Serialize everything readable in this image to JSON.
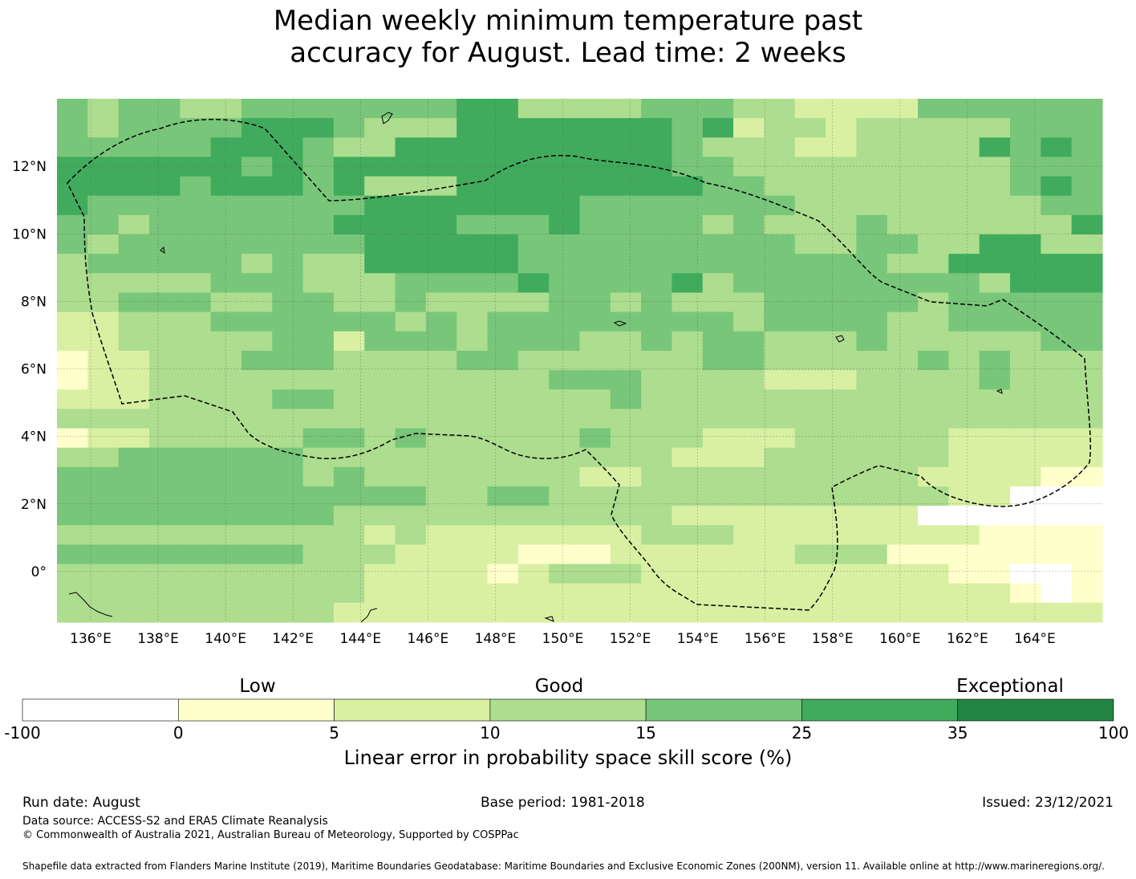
{
  "title": {
    "line1": "Median weekly minimum temperature past",
    "line2": "accuracy for August. Lead time: 2 weeks"
  },
  "map": {
    "lon_range": [
      135,
      166
    ],
    "lat_range": [
      -1.5,
      14
    ],
    "lon_ticks": [
      "136°E",
      "138°E",
      "140°E",
      "142°E",
      "144°E",
      "146°E",
      "148°E",
      "150°E",
      "152°E",
      "154°E",
      "156°E",
      "158°E",
      "160°E",
      "162°E",
      "164°E"
    ],
    "lat_ticks": [
      "12°N",
      "10°N",
      "8°N",
      "6°N",
      "4°N",
      "2°N",
      "0°"
    ],
    "lat_tick_values": [
      12,
      10,
      8,
      6,
      4,
      2,
      0
    ],
    "lon_tick_values": [
      136,
      138,
      140,
      142,
      144,
      146,
      148,
      150,
      152,
      154,
      156,
      158,
      160,
      162,
      164
    ]
  },
  "colorbar": {
    "categories": [
      {
        "word": "Low"
      },
      {
        "word": "Good"
      },
      {
        "word": "Exceptional"
      }
    ],
    "boundaries": [
      "-100",
      "0",
      "5",
      "10",
      "15",
      "25",
      "35",
      "100"
    ],
    "colors": [
      "#ffffff",
      "#ffffcc",
      "#d9f0a3",
      "#addd8e",
      "#78c679",
      "#41ab5d",
      "#238443"
    ],
    "label": "Linear error in probability space skill score (%)"
  },
  "footer": {
    "run_date": "Run date: August",
    "base_period": "Base period: 1981-2018",
    "issued": "Issued: 23/12/2021",
    "data_source": "Data source: ACCESS-S2 and ERA5 Climate Reanalysis",
    "copyright": "© Commonwealth of Australia 2021, Australian Bureau of Meteorology, Supported by COSPPac",
    "shapefile": "Shapefile data extracted from Flanders Marine Institute (2019), Maritime Boundaries Geodatabase: Maritime Boundaries and Exclusive Economic Zones (200NM), version 11. Available online at http://www.marineregions.org/."
  },
  "grid_rows": [
    "4344334444444553333444332222444444",
    "4344445554333555555545233233333444",
    "4444455543355555555543332233335454",
    "5555554545555555555544333333333444",
    "5555455545333555555554433333333454",
    "5444444444555555544444443333333344",
    "4434444445555444544443433343333335",
    "4344444444555554444444443344335533",
    "3444443433555554444444444443355555",
    "3333344433344445444453444444443555",
    "3344433443343333443433344444344444",
    "2233344444434344444444344443344444",
    "2233333442444344433434433343333344",
    "1223334443333443333334433333434333",
    "1223333333333333444333322233334333",
    "2223333443333333334333333333333333",
    "3333333333333333333333333333333333",
    "1223333344343333343332223333322222",
    "3344444433333333333322233333322222",
    "4444444434333333322333333333222211",
    "4444444444443344333333333333322000",
    "4444444443333333333322222222000000",
    "3333333333232222222333222222221111",
    "4444444433322221112222223331111111",
    "3333333333222212333222222222211001",
    "3333333333222222222222222222222101",
    "3333333332222222222222222222222222"
  ]
}
